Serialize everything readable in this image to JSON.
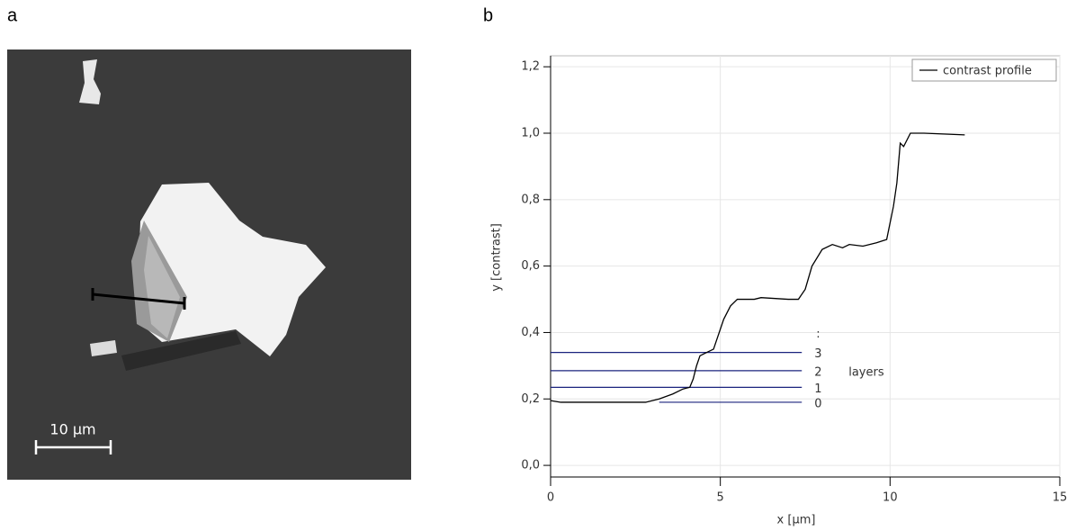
{
  "panel_labels": [
    "a",
    "b"
  ],
  "image": {
    "scale_bar_label": "10 µm"
  },
  "chart_data": {
    "type": "line",
    "x_label": "x [µm]",
    "y_label": "y [contrast]",
    "xlim": [
      0,
      15
    ],
    "ylim": [
      -0.035,
      1.233
    ],
    "xticks": [
      0,
      5,
      10,
      15
    ],
    "yticks": [
      {
        "value": 0,
        "label": "0,0"
      },
      {
        "value": 0.2,
        "label": "0,2"
      },
      {
        "value": 0.4,
        "label": "0,4"
      },
      {
        "value": 0.6,
        "label": "0,6"
      },
      {
        "value": 0.8,
        "label": "0,8"
      },
      {
        "value": 1.0,
        "label": "1,0"
      },
      {
        "value": 1.2,
        "label": "1,2"
      }
    ],
    "grid": true,
    "legend": "upper right",
    "series": [
      {
        "name": "contrast profile",
        "color": "#000000",
        "x": [
          0,
          0.3,
          1,
          2,
          2.8,
          3.2,
          3.6,
          3.9,
          4.1,
          4.2,
          4.3,
          4.4,
          4.6,
          4.8,
          4.9,
          5.1,
          5.3,
          5.5,
          6,
          6.2,
          7,
          7.3,
          7.5,
          7.7,
          8,
          8.3,
          8.6,
          8.8,
          9.2,
          9.6,
          9.9,
          10.1,
          10.2,
          10.3,
          10.4,
          10.6,
          11,
          12.2
        ],
        "values": [
          0.195,
          0.19,
          0.19,
          0.19,
          0.19,
          0.2,
          0.215,
          0.23,
          0.235,
          0.26,
          0.3,
          0.33,
          0.34,
          0.35,
          0.38,
          0.44,
          0.48,
          0.5,
          0.5,
          0.505,
          0.5,
          0.5,
          0.53,
          0.6,
          0.65,
          0.665,
          0.655,
          0.665,
          0.66,
          0.67,
          0.68,
          0.78,
          0.85,
          0.97,
          0.96,
          1.0,
          1.0,
          0.995
        ]
      }
    ],
    "layer_lines": [
      {
        "label": "0",
        "y": 0.19,
        "x0": 3.2,
        "x1": 7.4
      },
      {
        "label": "1",
        "y": 0.235,
        "x0": 0,
        "x1": 7.4
      },
      {
        "label": "2",
        "y": 0.285,
        "x0": 0,
        "x1": 7.4
      },
      {
        "label": "3",
        "y": 0.34,
        "x0": 0,
        "x1": 7.4
      }
    ],
    "layer_color": "#1a237e",
    "layer_marker": ":",
    "layers_label": "layers"
  }
}
